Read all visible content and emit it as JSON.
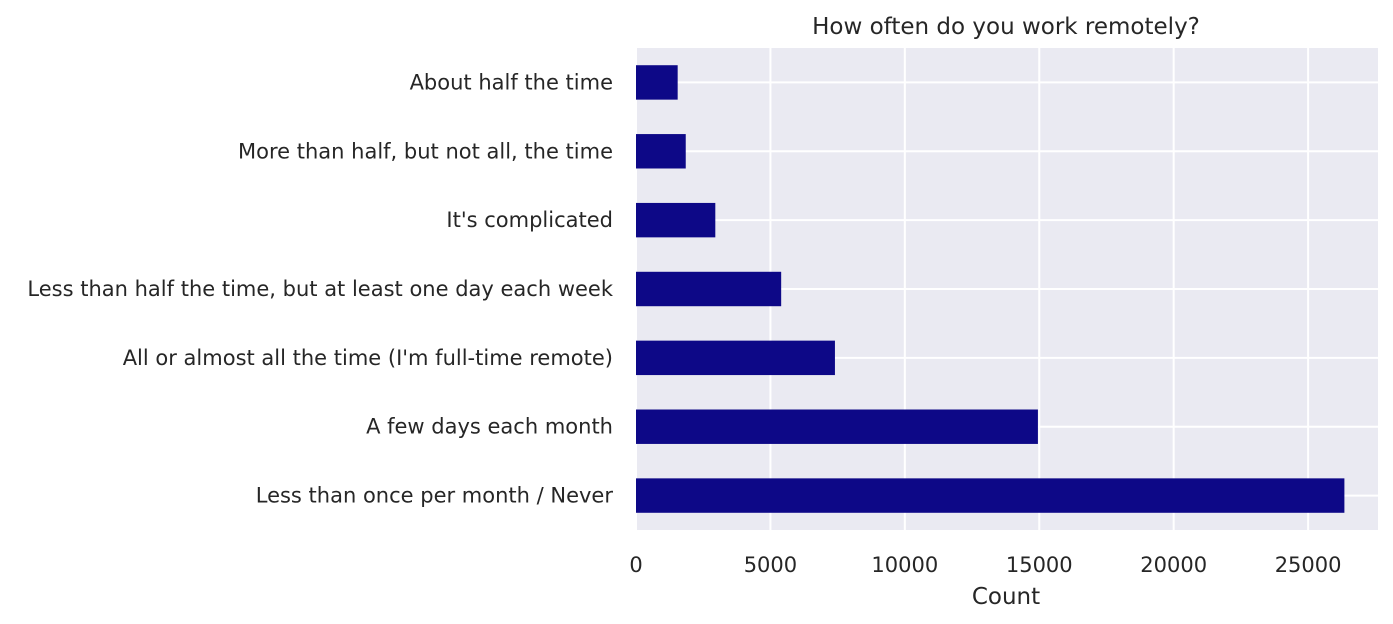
{
  "chart_data": {
    "type": "bar",
    "orientation": "horizontal",
    "title": "How often do you work remotely?",
    "xlabel": "Count",
    "ylabel": "",
    "categories": [
      "About half the time",
      "More than half, but not all, the time",
      "It's complicated",
      "Less than half the time, but at least one day each week",
      "All or almost all the time (I'm full-time remote)",
      "A few days each month",
      "Less than once per month / Never"
    ],
    "values": [
      1550,
      1850,
      2950,
      5400,
      7400,
      14950,
      26350
    ],
    "xlim": [
      0,
      27600
    ],
    "xticks": [
      0,
      5000,
      10000,
      15000,
      20000,
      25000
    ],
    "xtick_labels": [
      "0",
      "5000",
      "10000",
      "15000",
      "20000",
      "25000"
    ],
    "grid": true,
    "bar_color": "#0d0887",
    "background_color": "#eaeaf2",
    "grid_color": "#ffffff"
  }
}
